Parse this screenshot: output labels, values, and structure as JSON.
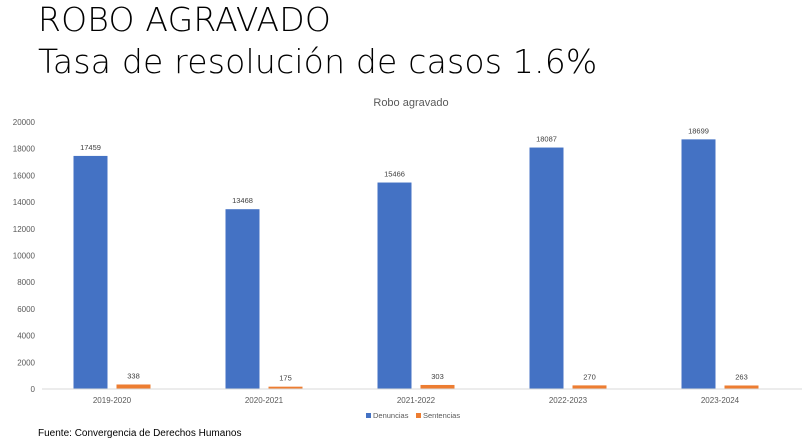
{
  "slide": {
    "title_line1": "ROBO AGRAVADO",
    "title_line2": "Tasa de resolución de casos 1.6%",
    "source": "Fuente: Convergencia de Derechos Humanos"
  },
  "chart_data": {
    "type": "bar",
    "title": "Robo agravado",
    "categories": [
      "2019-2020",
      "2020-2021",
      "2021-2022",
      "2022-2023",
      "2023-2024"
    ],
    "series": [
      {
        "name": "Denuncias",
        "color": "#4472C4",
        "values": [
          17459,
          13468,
          15466,
          18087,
          18699
        ]
      },
      {
        "name": "Sentencias",
        "color": "#ED7D31",
        "values": [
          338,
          175,
          303,
          270,
          263
        ]
      }
    ],
    "ylim": [
      0,
      20000
    ],
    "yticks": [
      0,
      2000,
      4000,
      6000,
      8000,
      10000,
      12000,
      14000,
      16000,
      18000,
      20000
    ],
    "grid": false,
    "legend": "bottom",
    "data_labels": true
  }
}
